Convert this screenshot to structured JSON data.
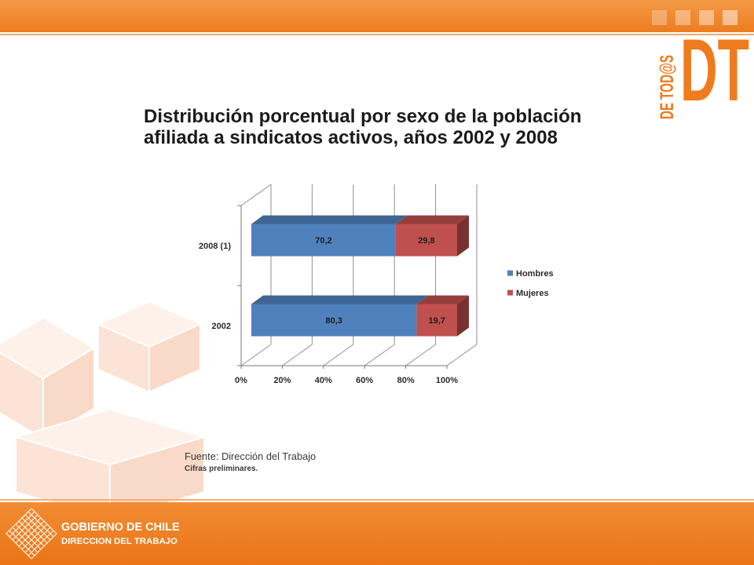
{
  "chart_data": {
    "type": "bar",
    "horizontal": true,
    "stacked_percent": true,
    "three_d": true,
    "title": "Distribución porcentual por sexo de la población afiliada a sindicatos activos, años 2002 y 2008",
    "categories": [
      "2002",
      "2008 (1)"
    ],
    "series": [
      {
        "name": "Hombres",
        "color": "#4f81bd",
        "values": [
          80.3,
          70.2
        ],
        "labels": [
          "80,3",
          "70,2"
        ]
      },
      {
        "name": "Mujeres",
        "color": "#c0504d",
        "values": [
          19.7,
          29.8
        ],
        "labels": [
          "19,7",
          "29,8"
        ]
      }
    ],
    "xlim": [
      0,
      100
    ],
    "xticks": [
      "0%",
      "20%",
      "40%",
      "60%",
      "80%",
      "100%"
    ],
    "grid": true,
    "legend": "right"
  },
  "footnote": {
    "source": "Fuente: Dirección del Trabajo",
    "note": "Cifras preliminares."
  },
  "brand": {
    "logo_main": "DT",
    "logo_tagline": "DE TOD@S",
    "footer_line1": "GOBIERNO DE CHILE",
    "footer_line2": "DIRECCION DEL TRABAJO"
  },
  "colors": {
    "accent": "#ef7d22"
  }
}
